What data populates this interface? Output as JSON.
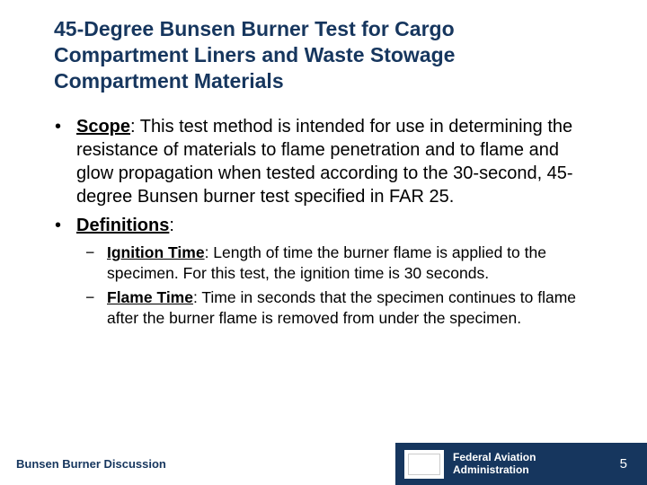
{
  "colors": {
    "title_color": "#16365e",
    "body_color": "#000000",
    "footer_bg": "#16365e",
    "footer_left_text": "#16365e",
    "footer_right_text": "#ffffff",
    "background": "#ffffff"
  },
  "title": "45-Degree Bunsen Burner Test for Cargo Compartment Liners and Waste Stowage Compartment Materials",
  "bullets": [
    {
      "label": "Scope",
      "text": ": This test method is intended for use in determining the resistance of materials to flame penetration and to flame and glow propagation when tested according to the 30-second, 45-degree Bunsen burner test specified in FAR 25."
    },
    {
      "label": "Definitions",
      "text": ":",
      "sub": [
        {
          "label": "Ignition Time",
          "text": ": Length of time the burner flame is applied to the specimen. For this test, the ignition time is 30 seconds."
        },
        {
          "label": "Flame Time",
          "text": ": Time in seconds that the specimen continues to flame after the burner flame is removed from under the specimen."
        }
      ]
    }
  ],
  "footer": {
    "left": "Bunsen Burner Discussion",
    "org_line1": "Federal Aviation",
    "org_line2": "Administration",
    "page": "5"
  }
}
